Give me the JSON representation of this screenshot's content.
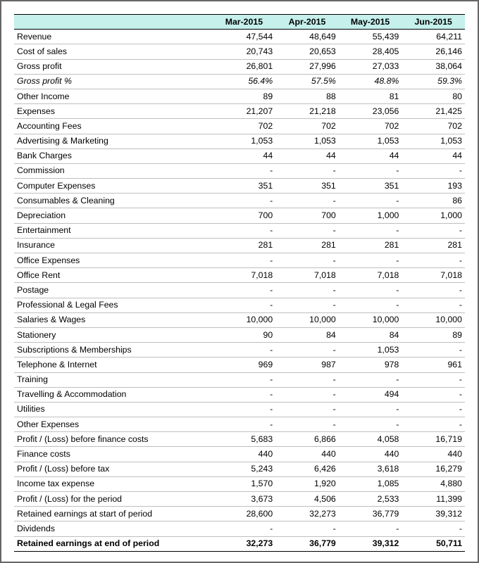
{
  "table": {
    "type": "table",
    "background_color": "#ffffff",
    "header_bg": "#c5f0ec",
    "border_color": "#bfbfbf",
    "strong_border_color": "#000000",
    "font_family": "Arial",
    "font_size_pt": 9,
    "columns": [
      "",
      "Mar-2015",
      "Apr-2015",
      "May-2015",
      "Jun-2015"
    ],
    "column_widths_pct": [
      44,
      14,
      14,
      14,
      14
    ],
    "rows": [
      {
        "label": "Revenue",
        "v": [
          "47,544",
          "48,649",
          "55,439",
          "64,211"
        ]
      },
      {
        "label": "Cost of sales",
        "v": [
          "20,743",
          "20,653",
          "28,405",
          "26,146"
        ]
      },
      {
        "label": "Gross profit",
        "v": [
          "26,801",
          "27,996",
          "27,033",
          "38,064"
        ],
        "top_border": true
      },
      {
        "label": "Gross profit %",
        "v": [
          "56.4%",
          "57.5%",
          "48.8%",
          "59.3%"
        ],
        "italic": true
      },
      {
        "label": "Other Income",
        "v": [
          "89",
          "88",
          "81",
          "80"
        ]
      },
      {
        "label": "Expenses",
        "v": [
          "21,207",
          "21,218",
          "23,056",
          "21,425"
        ]
      },
      {
        "label": "Accounting Fees",
        "v": [
          "702",
          "702",
          "702",
          "702"
        ]
      },
      {
        "label": "Advertising & Marketing",
        "v": [
          "1,053",
          "1,053",
          "1,053",
          "1,053"
        ]
      },
      {
        "label": "Bank Charges",
        "v": [
          "44",
          "44",
          "44",
          "44"
        ]
      },
      {
        "label": "Commission",
        "v": [
          "-",
          "-",
          "-",
          "-"
        ]
      },
      {
        "label": "Computer Expenses",
        "v": [
          "351",
          "351",
          "351",
          "193"
        ]
      },
      {
        "label": "Consumables & Cleaning",
        "v": [
          "-",
          "-",
          "-",
          "86"
        ]
      },
      {
        "label": "Depreciation",
        "v": [
          "700",
          "700",
          "1,000",
          "1,000"
        ]
      },
      {
        "label": "Entertainment",
        "v": [
          "-",
          "-",
          "-",
          "-"
        ]
      },
      {
        "label": "Insurance",
        "v": [
          "281",
          "281",
          "281",
          "281"
        ]
      },
      {
        "label": "Office Expenses",
        "v": [
          "-",
          "-",
          "-",
          "-"
        ]
      },
      {
        "label": "Office Rent",
        "v": [
          "7,018",
          "7,018",
          "7,018",
          "7,018"
        ]
      },
      {
        "label": "Postage",
        "v": [
          "-",
          "-",
          "-",
          "-"
        ]
      },
      {
        "label": "Professional & Legal Fees",
        "v": [
          "-",
          "-",
          "-",
          "-"
        ]
      },
      {
        "label": "Salaries & Wages",
        "v": [
          "10,000",
          "10,000",
          "10,000",
          "10,000"
        ]
      },
      {
        "label": "Stationery",
        "v": [
          "90",
          "84",
          "84",
          "89"
        ]
      },
      {
        "label": "Subscriptions & Memberships",
        "v": [
          "-",
          "-",
          "1,053",
          "-"
        ]
      },
      {
        "label": "Telephone & Internet",
        "v": [
          "969",
          "987",
          "978",
          "961"
        ]
      },
      {
        "label": "Training",
        "v": [
          "-",
          "-",
          "-",
          "-"
        ]
      },
      {
        "label": "Travelling & Accommodation",
        "v": [
          "-",
          "-",
          "494",
          "-"
        ]
      },
      {
        "label": "Utilities",
        "v": [
          "-",
          "-",
          "-",
          "-"
        ]
      },
      {
        "label": "Other Expenses",
        "v": [
          "-",
          "-",
          "-",
          "-"
        ]
      },
      {
        "label": "Profit / (Loss) before finance costs",
        "v": [
          "5,683",
          "6,866",
          "4,058",
          "16,719"
        ],
        "top_border": true
      },
      {
        "label": "Finance costs",
        "v": [
          "440",
          "440",
          "440",
          "440"
        ]
      },
      {
        "label": "Profit / (Loss) before tax",
        "v": [
          "5,243",
          "6,426",
          "3,618",
          "16,279"
        ],
        "top_border": true
      },
      {
        "label": "Income tax expense",
        "v": [
          "1,570",
          "1,920",
          "1,085",
          "4,880"
        ]
      },
      {
        "label": "Profit / (Loss) for the period",
        "v": [
          "3,673",
          "4,506",
          "2,533",
          "11,399"
        ],
        "top_border": true
      },
      {
        "label": "Retained earnings at start of period",
        "v": [
          "28,600",
          "32,273",
          "36,779",
          "39,312"
        ]
      },
      {
        "label": "Dividends",
        "v": [
          "-",
          "-",
          "-",
          "-"
        ]
      },
      {
        "label": "Retained earnings at end of period",
        "v": [
          "32,273",
          "36,779",
          "39,312",
          "50,711"
        ],
        "final": true
      }
    ]
  }
}
